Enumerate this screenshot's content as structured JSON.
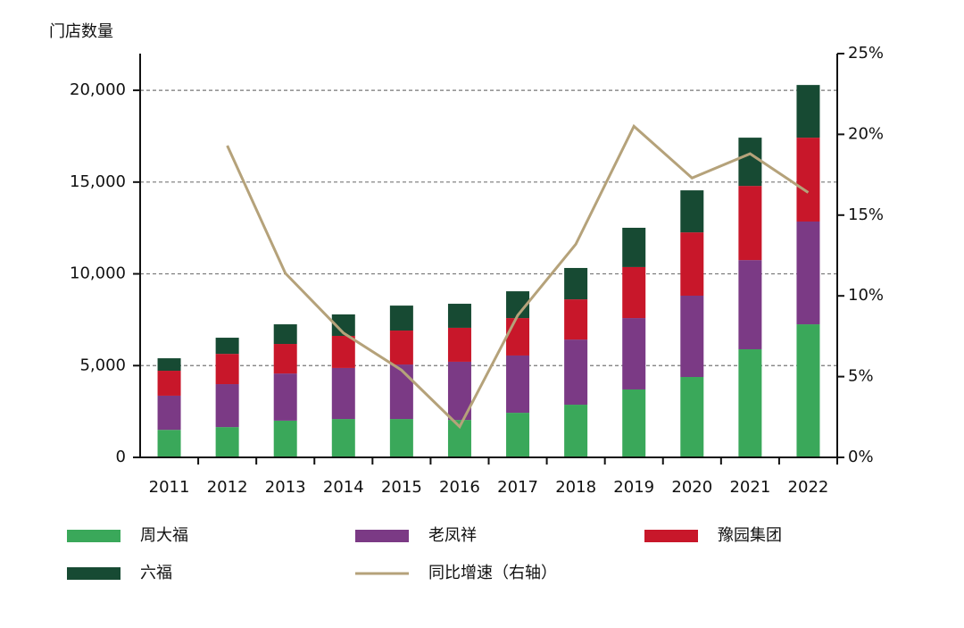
{
  "chart_data": {
    "type": "stacked-bar-line",
    "y_label": "门店数量",
    "categories": [
      "2011",
      "2012",
      "2013",
      "2014",
      "2015",
      "2016",
      "2017",
      "2018",
      "2019",
      "2020",
      "2021",
      "2022"
    ],
    "series": [
      {
        "name": "周大福",
        "color": "#3aa85a",
        "values": [
          1500,
          1650,
          2000,
          2090,
          2090,
          2040,
          2430,
          2870,
          3700,
          4380,
          5890,
          7250
        ]
      },
      {
        "name": "老凤祥",
        "color": "#7b3a85",
        "values": [
          1860,
          2340,
          2570,
          2780,
          2970,
          3170,
          3120,
          3550,
          3890,
          4430,
          4860,
          5600
        ]
      },
      {
        "name": "豫园集团",
        "color": "#c8172a",
        "values": [
          1360,
          1650,
          1610,
          1750,
          1850,
          1850,
          2040,
          2190,
          2780,
          3450,
          4040,
          4570
        ]
      },
      {
        "name": "六福",
        "color": "#174a33",
        "values": [
          680,
          880,
          1070,
          1170,
          1360,
          1310,
          1460,
          1710,
          2140,
          2290,
          2630,
          2870
        ]
      },
      {
        "name": "同比增速（右轴）",
        "color": "#b5a27a",
        "axis": "y2",
        "type": "line",
        "values": [
          null,
          19.3,
          11.4,
          7.7,
          5.4,
          1.9,
          8.8,
          13.2,
          20.5,
          17.3,
          18.8,
          16.4
        ]
      }
    ],
    "ylim": [
      0,
      22000
    ],
    "yticks": [
      0,
      {
        "value": 5000,
        "label": "5,000"
      },
      {
        "value": 10000,
        "label": "10,000"
      },
      {
        "value": 15000,
        "label": "15,000"
      },
      {
        "value": 20000,
        "label": "20,000"
      }
    ],
    "y2lim": [
      0,
      25
    ],
    "y2ticks": [
      {
        "value": 0,
        "label": "0%"
      },
      {
        "value": 5,
        "label": "5%"
      },
      {
        "value": 10,
        "label": "10%"
      },
      {
        "value": 15,
        "label": "15%"
      },
      {
        "value": 20,
        "label": "20%"
      },
      {
        "value": 25,
        "label": "25%"
      }
    ],
    "grid": true
  }
}
